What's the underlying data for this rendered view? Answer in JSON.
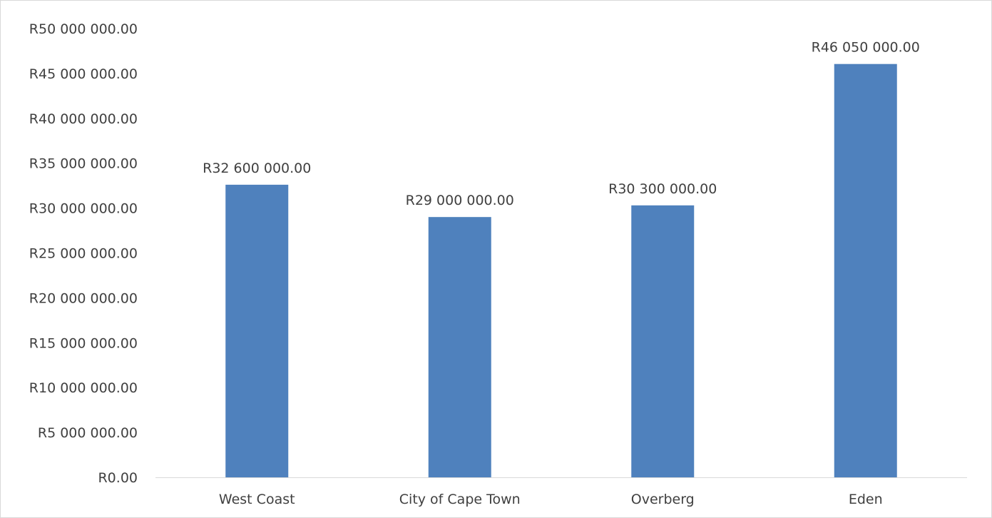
{
  "chart_data": {
    "type": "bar",
    "title": "",
    "xlabel": "",
    "ylabel": "",
    "categories": [
      "West Coast",
      "City of Cape Town",
      "Overberg",
      "Eden"
    ],
    "values": [
      32600000,
      29000000,
      30300000,
      46050000
    ],
    "data_labels": [
      "R32 600 000.00",
      "R29 000 000.00",
      "R30 300 000.00",
      "R46 050 000.00"
    ],
    "ylim": [
      0,
      50000000
    ],
    "y_ticks": [
      0,
      5000000,
      10000000,
      15000000,
      20000000,
      25000000,
      30000000,
      35000000,
      40000000,
      45000000,
      50000000
    ],
    "y_tick_labels": [
      "R0.00",
      "R5 000 000.00",
      "R10 000 000.00",
      "R15 000 000.00",
      "R20 000 000.00",
      "R25 000 000.00",
      "R30 000 000.00",
      "R35 000 000.00",
      "R40 000 000.00",
      "R45 000 000.00",
      "R50 000 000.00"
    ],
    "grid": false,
    "legend": "none",
    "bar_color": "#4f81bd",
    "axis_color": "#d9d9d9",
    "text_color": "#404040"
  }
}
